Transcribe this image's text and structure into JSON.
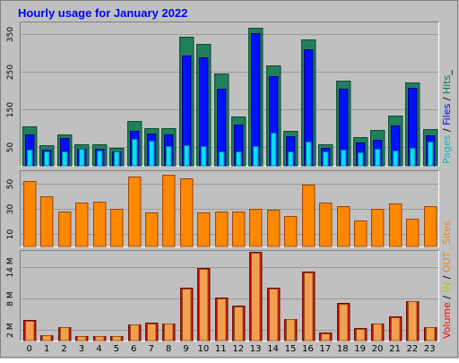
{
  "chart_data": {
    "type": "bar",
    "title": "Hourly usage for January 2022",
    "categories": [
      "0",
      "1",
      "2",
      "3",
      "4",
      "5",
      "6",
      "7",
      "8",
      "9",
      "10",
      "11",
      "12",
      "13",
      "14",
      "15",
      "16",
      "17",
      "18",
      "19",
      "20",
      "21",
      "22",
      "23"
    ],
    "panels": [
      {
        "id": "top",
        "ylim": [
          0,
          380
        ],
        "yticks": [
          "50",
          "150",
          "250",
          "350"
        ],
        "ytick_values": [
          50,
          150,
          250,
          350
        ],
        "legend": [
          {
            "text": "Pages",
            "color": "#00c0c0"
          },
          {
            "text": " / ",
            "color": "#000000"
          },
          {
            "text": "Files",
            "color": "#0000ff"
          },
          {
            "text": " / ",
            "color": "#000000"
          },
          {
            "text": "Hits",
            "color": "#008040"
          },
          {
            "text": "_",
            "color": "#000000"
          }
        ],
        "series": [
          {
            "name": "Hits",
            "color": "#20805a",
            "values": [
              105,
              55,
              82,
              58,
              58,
              48,
              118,
              100,
              100,
              343,
              323,
              244,
              130,
              366,
              266,
              92,
              336,
              58,
              226,
              75,
              95,
              132,
              222,
              98
            ]
          },
          {
            "name": "Files",
            "color": "#0010ff",
            "values": [
              82,
              42,
              74,
              45,
              44,
              38,
              92,
              85,
              82,
              293,
              288,
              204,
              110,
              352,
              237,
              78,
              309,
              47,
              204,
              62,
              70,
              108,
              207,
              80
            ]
          },
          {
            "name": "Pages",
            "color": "#00e0ff",
            "values": [
              42,
              38,
              37,
              45,
              41,
              38,
              72,
              66,
              52,
              55,
              52,
              39,
              37,
              53,
              88,
              37,
              63,
              37,
              42,
              35,
              46,
              40,
              48,
              64
            ]
          }
        ]
      },
      {
        "id": "middle",
        "ylim": [
          0,
          60
        ],
        "yticks": [
          "10",
          "30",
          "50"
        ],
        "ytick_values": [
          10,
          30,
          50
        ],
        "legend": [
          {
            "text": "Sites",
            "color": "#ff8000"
          }
        ],
        "series": [
          {
            "name": "Sites",
            "color": "#ff8800",
            "values": [
              52,
              40,
              28,
              35,
              36,
              30,
              56,
              27,
              57,
              54,
              27,
              28,
              28,
              30,
              29,
              24,
              49,
              35,
              32,
              21,
              30,
              34,
              22,
              32
            ]
          }
        ]
      },
      {
        "id": "bottom",
        "ylim": [
          0,
          17
        ],
        "yticks": [
          "2 M",
          "8 M",
          "14 M"
        ],
        "ytick_values": [
          2,
          8,
          14
        ],
        "legend": [
          {
            "text": "Volume",
            "color": "#ff0000"
          },
          {
            "text": " / ",
            "color": "#000000"
          },
          {
            "text": "IN",
            "color": "#c0c000"
          },
          {
            "text": " / ",
            "color": "#000000"
          },
          {
            "text": "OUT",
            "color": "#ff8000"
          }
        ],
        "series": [
          {
            "name": "Volume",
            "color": "#cc1111",
            "values": [
              3.9,
              1.0,
              2.5,
              0.9,
              0.9,
              0.9,
              3.1,
              3.4,
              3.3,
              10.0,
              13.8,
              8.2,
              6.6,
              16.8,
              10.0,
              4.1,
              13.1,
              1.5,
              7.1,
              2.3,
              3.3,
              4.6,
              7.5,
              2.6
            ]
          },
          {
            "name": "OUT",
            "color": "#f0a050",
            "values": [
              3.8,
              1.0,
              2.5,
              0.9,
              0.9,
              0.9,
              3.0,
              3.3,
              3.2,
              9.8,
              13.6,
              8.0,
              6.5,
              16.6,
              9.9,
              4.0,
              12.9,
              1.4,
              7.0,
              2.2,
              3.2,
              4.5,
              7.4,
              2.5
            ]
          }
        ]
      }
    ],
    "colors": {
      "background": "#c0c0c0",
      "title": "#0000ff",
      "grid": "#999999"
    }
  }
}
